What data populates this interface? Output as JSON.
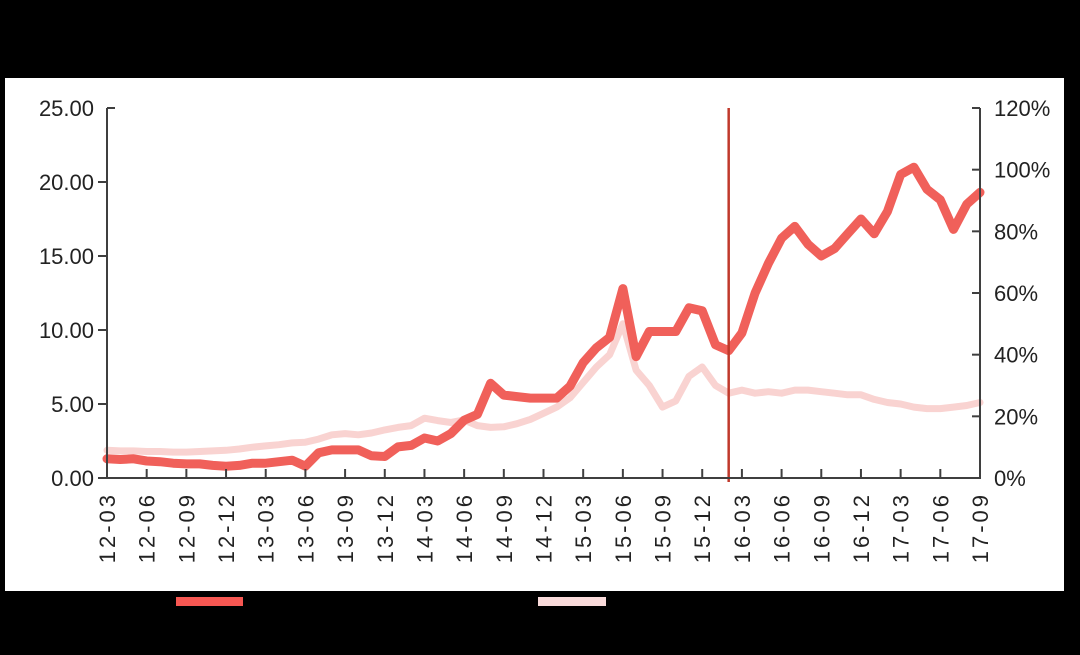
{
  "frame": {
    "background_color": "#000000",
    "plot_background_color": "#ffffff"
  },
  "chart_data": {
    "type": "line",
    "title": "",
    "grid": "off",
    "legend_position": "bottom",
    "legend_labels_visible": false,
    "x_axis": {
      "labels": [
        "12-03",
        "12-06",
        "12-09",
        "12-12",
        "13-03",
        "13-06",
        "13-09",
        "13-12",
        "14-03",
        "14-06",
        "14-09",
        "14-12",
        "15-03",
        "15-06",
        "15-09",
        "15-12",
        "16-03",
        "16-06",
        "16-09",
        "16-12",
        "17-03",
        "17-06",
        "17-09"
      ],
      "label_format": "YY-MM",
      "months_per_tick": 3,
      "label_rotation_deg": -90
    },
    "left_axis": {
      "ticks": [
        "25.00",
        "20.00",
        "15.00",
        "10.00",
        "5.00",
        "0.00"
      ],
      "min": 0,
      "max": 25
    },
    "right_axis": {
      "ticks": [
        "120%",
        "100%",
        "80%",
        "60%",
        "40%",
        "20%",
        "0%"
      ],
      "min": 0,
      "max": 120
    },
    "series": [
      {
        "name": "price-series",
        "axis": "left",
        "color": "#f0605a",
        "legend_swatch_color": "#f75752",
        "legend_label": "",
        "monthly_values_2012_03_to_2017_09": [
          1.3,
          1.25,
          1.3,
          1.15,
          1.1,
          1.0,
          0.95,
          0.95,
          0.85,
          0.8,
          0.85,
          1.0,
          1.0,
          1.1,
          1.2,
          0.8,
          1.7,
          1.9,
          1.9,
          1.9,
          1.5,
          1.45,
          2.1,
          2.2,
          2.7,
          2.5,
          3.0,
          3.9,
          4.3,
          6.4,
          5.6,
          5.5,
          5.4,
          5.4,
          5.4,
          6.2,
          7.8,
          8.8,
          9.5,
          12.8,
          8.2,
          9.9,
          9.9,
          9.9,
          11.5,
          11.3,
          9.0,
          8.6,
          9.8,
          12.5,
          14.5,
          16.2,
          17.0,
          15.8,
          15.0,
          15.5,
          16.5,
          17.5,
          16.5,
          18.0,
          20.5,
          21.0,
          19.5,
          18.8,
          16.8,
          18.5,
          19.3
        ]
      },
      {
        "name": "percent-series",
        "axis": "right",
        "color": "#f9d3d1",
        "legend_swatch_color": "#fadbdb",
        "legend_label": "",
        "monthly_values_2012_03_to_2017_09": [
          9.0,
          8.8,
          8.8,
          8.6,
          8.6,
          8.4,
          8.4,
          8.6,
          8.8,
          9.0,
          9.4,
          10.0,
          10.4,
          10.8,
          11.4,
          11.6,
          12.6,
          14.0,
          14.4,
          14.0,
          14.6,
          15.6,
          16.4,
          17.0,
          19.4,
          18.6,
          18.0,
          18.8,
          17.0,
          16.4,
          16.6,
          17.6,
          19.0,
          21.0,
          23.0,
          26.0,
          31.0,
          36.0,
          40.0,
          50.0,
          35.0,
          30.0,
          23.0,
          25.0,
          33.0,
          36.0,
          30.0,
          27.5,
          28.5,
          27.5,
          28.0,
          27.5,
          28.5,
          28.5,
          28.0,
          27.5,
          27.0,
          27.0,
          25.5,
          24.5,
          24.0,
          23.0,
          22.5,
          22.5,
          23.0,
          23.5,
          24.5
        ]
      }
    ],
    "marker": {
      "type": "vertical-line",
      "color": "#c0392b",
      "month_index_from_2012_03": 47
    },
    "axis_line_color": "#3f3f3f"
  }
}
